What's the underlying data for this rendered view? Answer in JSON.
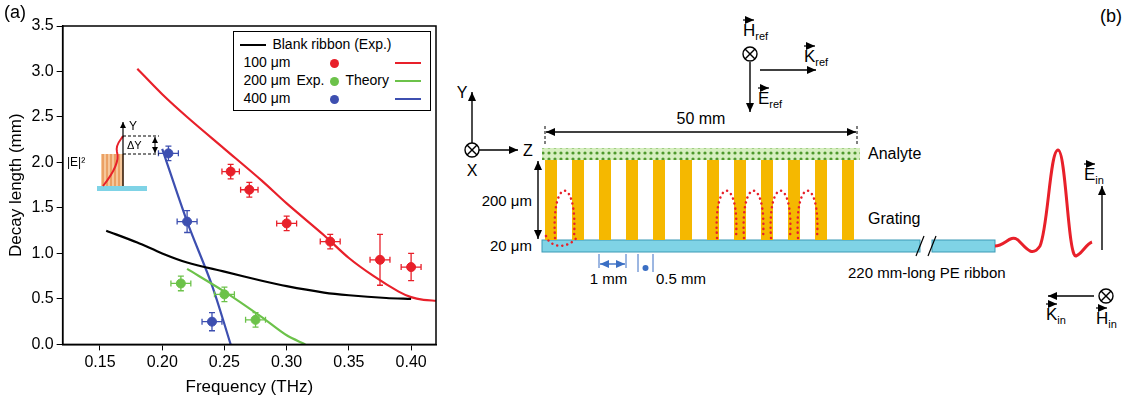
{
  "chart_data": {
    "type": "scatter",
    "panel": "(a)",
    "x_label": "Frequency (THz)",
    "y_label": "Decay length (mm)",
    "xlim": [
      0.12,
      0.42
    ],
    "xticks": [
      0.15,
      {
        "value": 0.2,
        "label": "0.20"
      },
      0.25,
      {
        "value": 0.3,
        "label": "0.30"
      },
      0.35,
      {
        "value": 0.4,
        "label": "0.40"
      }
    ],
    "ylim": [
      0,
      3.5
    ],
    "yticks": [
      {
        "value": 0,
        "label": "0.0"
      },
      0.5,
      {
        "value": 1,
        "label": "1.0"
      },
      1.5,
      {
        "value": 2,
        "label": "2.0"
      },
      2.5,
      {
        "value": 3,
        "label": "3.0"
      },
      3.5
    ],
    "grid": false,
    "legend": "top-right",
    "legend_headers": [
      "Exp.",
      "Theory"
    ],
    "annotations": {
      "inset": [
        "Y",
        "|E|²",
        "ΔY"
      ]
    },
    "series": [
      {
        "name": "Blank ribbon (Exp.)",
        "type": "line",
        "color": "#000000",
        "x": [
          0.155,
          0.18,
          0.2,
          0.22,
          0.25,
          0.28,
          0.3,
          0.33,
          0.35,
          0.38,
          0.4
        ],
        "values": [
          1.25,
          1.12,
          1.0,
          0.9,
          0.8,
          0.7,
          0.64,
          0.57,
          0.54,
          0.51,
          0.5
        ]
      },
      {
        "name": "100 μm",
        "type": "scatter",
        "color": "#e8202a",
        "marker": "circle",
        "x": [
          0.255,
          0.27,
          0.3,
          0.335,
          0.375,
          0.4
        ],
        "values": [
          1.9,
          1.7,
          1.33,
          1.13,
          0.93,
          0.85
        ],
        "x_err": [
          0.007,
          0.007,
          0.008,
          0.008,
          0.008,
          0.008
        ],
        "y_err": [
          0.08,
          0.08,
          0.08,
          0.08,
          0.28,
          0.15
        ]
      },
      {
        "name": "100 μm",
        "type": "line",
        "color": "#e8202a",
        "x": [
          0.18,
          0.2,
          0.22,
          0.25,
          0.28,
          0.3,
          0.33,
          0.35,
          0.37,
          0.39,
          0.4,
          0.41,
          0.42
        ],
        "values": [
          3.03,
          2.75,
          2.5,
          2.15,
          1.8,
          1.55,
          1.2,
          0.95,
          0.75,
          0.58,
          0.52,
          0.49,
          0.48
        ]
      },
      {
        "name": "200 μm",
        "type": "scatter",
        "color": "#6cc24a",
        "marker": "circle",
        "x": [
          0.215,
          0.25,
          0.275
        ],
        "values": [
          0.67,
          0.55,
          0.27
        ],
        "x_err": [
          0.008,
          0.008,
          0.008
        ],
        "y_err": [
          0.08,
          0.08,
          0.08
        ]
      },
      {
        "name": "200 μm",
        "type": "line",
        "color": "#6cc24a",
        "x": [
          0.22,
          0.25,
          0.28,
          0.3,
          0.315
        ],
        "values": [
          0.83,
          0.58,
          0.3,
          0.1,
          0.0
        ]
      },
      {
        "name": "400 μm",
        "type": "scatter",
        "color": "#3d4fb0",
        "marker": "circle",
        "x": [
          0.205,
          0.22,
          0.24
        ],
        "values": [
          2.1,
          1.35,
          0.25
        ],
        "x_err": [
          0.008,
          0.008,
          0.008
        ],
        "y_err": [
          0.08,
          0.12,
          0.1
        ]
      },
      {
        "name": "400 μm",
        "type": "line",
        "color": "#3d4fb0",
        "x": [
          0.2,
          0.22,
          0.24,
          0.255
        ],
        "values": [
          2.15,
          1.35,
          0.65,
          0.0
        ]
      }
    ]
  },
  "diagram": {
    "panel": "(b)",
    "axes": {
      "y": "Y",
      "z": "Z",
      "x": "X"
    },
    "dimensions": {
      "length": "50 mm",
      "grating_height": "200 μm",
      "ribbon_thickness": "20 μm",
      "period": "1 mm",
      "gap": "0.5 mm"
    },
    "labels": {
      "analyte": "Analyte",
      "grating": "Grating",
      "ribbon": "220 mm-long PE ribbon"
    },
    "reference_wave": [
      {
        "symbol": "H",
        "sub": "ref"
      },
      {
        "symbol": "K",
        "sub": "ref"
      },
      {
        "symbol": "E",
        "sub": "ref"
      }
    ],
    "incident_wave": [
      {
        "symbol": "E",
        "sub": "in"
      },
      {
        "symbol": "K",
        "sub": "in"
      },
      {
        "symbol": "H",
        "sub": "in"
      }
    ]
  }
}
